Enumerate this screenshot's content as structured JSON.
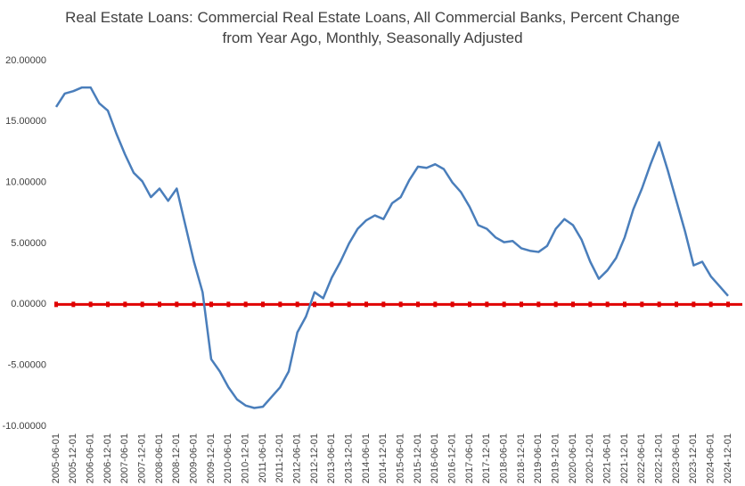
{
  "chart_data": {
    "type": "line",
    "title": "Real Estate Loans: Commercial Real Estate Loans, All Commercial Banks, Percent Change from Year Ago, Monthly, Seasonally Adjusted",
    "categories": [
      "2005-06-01",
      null,
      "2005-12-01",
      null,
      "2006-06-01",
      null,
      "2006-12-01",
      null,
      "2007-06-01",
      null,
      "2007-12-01",
      null,
      "2008-06-01",
      null,
      "2008-12-01",
      null,
      "2009-06-01",
      null,
      "2009-12-01",
      null,
      "2010-06-01",
      null,
      "2010-12-01",
      null,
      "2011-06-01",
      null,
      "2011-12-01",
      null,
      "2012-06-01",
      null,
      "2012-12-01",
      null,
      "2013-06-01",
      null,
      "2013-12-01",
      null,
      "2014-06-01",
      null,
      "2014-12-01",
      null,
      "2015-06-01",
      null,
      "2015-12-01",
      null,
      "2016-06-01",
      null,
      "2016-12-01",
      null,
      "2017-06-01",
      null,
      "2017-12-01",
      null,
      "2018-06-01",
      null,
      "2018-12-01",
      null,
      "2019-06-01",
      null,
      "2019-12-01",
      null,
      "2020-06-01",
      null,
      "2020-12-01",
      null,
      "2021-06-01",
      null,
      "2021-12-01",
      null,
      "2022-06-01",
      null,
      "2022-12-01",
      null,
      "2023-06-01",
      null,
      "2023-12-01",
      null,
      "2024-06-01",
      null,
      "2024-12-01"
    ],
    "series": [
      {
        "color": "#4a7ebb",
        "values": [
          16.2,
          17.3,
          17.5,
          17.8,
          17.8,
          16.5,
          15.9,
          14.0,
          12.3,
          10.8,
          10.1,
          8.8,
          9.5,
          8.5,
          9.5,
          6.5,
          3.5,
          1.0,
          -4.5,
          -5.5,
          -6.8,
          -7.8,
          -8.3,
          -8.5,
          -8.4,
          -7.6,
          -6.8,
          -5.5,
          -2.3,
          -1.0,
          1.0,
          0.5,
          2.2,
          3.5,
          5.0,
          6.2,
          6.9,
          7.3,
          7.0,
          8.3,
          8.8,
          10.2,
          11.3,
          11.2,
          11.5,
          11.1,
          10.0,
          9.2,
          8.0,
          6.5,
          6.2,
          5.5,
          5.1,
          5.2,
          4.6,
          4.4,
          4.3,
          4.8,
          6.2,
          7.0,
          6.5,
          5.3,
          3.5,
          2.1,
          2.8,
          3.8,
          5.5,
          7.8,
          9.5,
          11.5,
          13.3,
          11.0,
          8.5,
          6.0,
          3.2,
          3.5,
          2.3,
          1.5,
          0.7
        ]
      }
    ],
    "reference_line": {
      "value": 0,
      "color": "#e00000"
    },
    "ylim": [
      -10,
      20
    ],
    "yticks": [
      {
        "value": -10,
        "label": "-10.00000"
      },
      {
        "value": -5,
        "label": "-5.00000"
      },
      {
        "value": 0,
        "label": "0.00000"
      },
      {
        "value": 5,
        "label": "5.00000"
      },
      {
        "value": 10,
        "label": "10.00000"
      },
      {
        "value": 15,
        "label": "15.00000"
      },
      {
        "value": 20,
        "label": "20.00000"
      }
    ],
    "grid": false
  }
}
